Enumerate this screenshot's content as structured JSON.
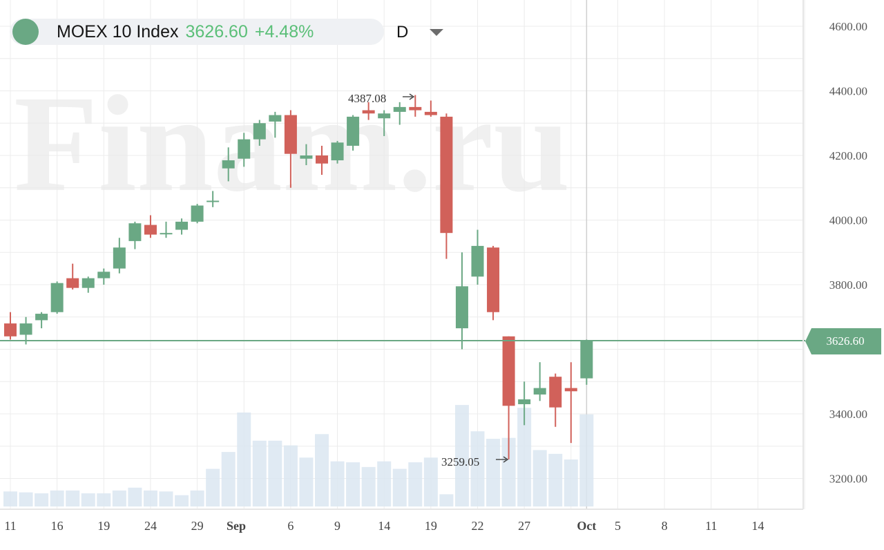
{
  "header": {
    "title": "MOEX 10 Index",
    "price": "3626.60",
    "change": "+4.48%",
    "interval": "D"
  },
  "watermark": "Finam.ru",
  "last_price_label": "3626.60",
  "annotations": {
    "high": {
      "label": "4387.08",
      "value": 4387.08
    },
    "low": {
      "label": "3259.05",
      "value": 3259.05
    }
  },
  "colors": {
    "up": "#6aa884",
    "down": "#d1615a",
    "volume": "#dbe6f1",
    "price_line": "#6aa884",
    "header_accent": "#5bbf78"
  },
  "chart_data": {
    "type": "candlestick",
    "ylim": [
      3120,
      4650
    ],
    "y_ticks": [
      "4600.00",
      "4400.00",
      "4200.00",
      "4000.00",
      "3800.00",
      "3400.00",
      "3200.00"
    ],
    "x_ticks": [
      {
        "label": "11",
        "i": 0
      },
      {
        "label": "16",
        "i": 3
      },
      {
        "label": "19",
        "i": 6
      },
      {
        "label": "24",
        "i": 9
      },
      {
        "label": "29",
        "i": 12
      },
      {
        "label": "Sep",
        "i": 14.5
      },
      {
        "label": "6",
        "i": 18
      },
      {
        "label": "9",
        "i": 21
      },
      {
        "label": "14",
        "i": 24
      },
      {
        "label": "19",
        "i": 27
      },
      {
        "label": "22",
        "i": 30
      },
      {
        "label": "27",
        "i": 33
      },
      {
        "label": "Oct",
        "i": 37
      },
      {
        "label": "5",
        "i": 39
      },
      {
        "label": "8",
        "i": 42
      },
      {
        "label": "11",
        "i": 45
      },
      {
        "label": "14",
        "i": 48
      }
    ],
    "grid": true,
    "candles": [
      {
        "o": 3680,
        "h": 3715,
        "l": 3630,
        "c": 3640,
        "v": 0.16
      },
      {
        "o": 3645,
        "h": 3700,
        "l": 3615,
        "c": 3680,
        "v": 0.15
      },
      {
        "o": 3690,
        "h": 3715,
        "l": 3665,
        "c": 3710,
        "v": 0.14
      },
      {
        "o": 3715,
        "h": 3810,
        "l": 3710,
        "c": 3805,
        "v": 0.17
      },
      {
        "o": 3820,
        "h": 3865,
        "l": 3785,
        "c": 3790,
        "v": 0.17
      },
      {
        "o": 3790,
        "h": 3825,
        "l": 3775,
        "c": 3820,
        "v": 0.14
      },
      {
        "o": 3820,
        "h": 3850,
        "l": 3800,
        "c": 3840,
        "v": 0.14
      },
      {
        "o": 3850,
        "h": 3945,
        "l": 3835,
        "c": 3915,
        "v": 0.17
      },
      {
        "o": 3935,
        "h": 3995,
        "l": 3910,
        "c": 3990,
        "v": 0.2
      },
      {
        "o": 3985,
        "h": 4015,
        "l": 3945,
        "c": 3955,
        "v": 0.17
      },
      {
        "o": 3960,
        "h": 3995,
        "l": 3945,
        "c": 3960,
        "v": 0.16
      },
      {
        "o": 3970,
        "h": 4005,
        "l": 3955,
        "c": 3995,
        "v": 0.12
      },
      {
        "o": 3995,
        "h": 4050,
        "l": 3990,
        "c": 4045,
        "v": 0.17
      },
      {
        "o": 4060,
        "h": 4090,
        "l": 4040,
        "c": 4060,
        "v": 0.4
      },
      {
        "o": 4160,
        "h": 4225,
        "l": 4120,
        "c": 4185,
        "v": 0.58
      },
      {
        "o": 4190,
        "h": 4270,
        "l": 4165,
        "c": 4250,
        "v": 1.0
      },
      {
        "o": 4250,
        "h": 4310,
        "l": 4230,
        "c": 4300,
        "v": 0.7
      },
      {
        "o": 4305,
        "h": 4335,
        "l": 4255,
        "c": 4325,
        "v": 0.7
      },
      {
        "o": 4325,
        "h": 4340,
        "l": 4100,
        "c": 4205,
        "v": 0.65
      },
      {
        "o": 4190,
        "h": 4235,
        "l": 4170,
        "c": 4200,
        "v": 0.52
      },
      {
        "o": 4200,
        "h": 4230,
        "l": 4140,
        "c": 4175,
        "v": 0.77
      },
      {
        "o": 4185,
        "h": 4245,
        "l": 4175,
        "c": 4240,
        "v": 0.48
      },
      {
        "o": 4230,
        "h": 4325,
        "l": 4215,
        "c": 4320,
        "v": 0.47
      },
      {
        "o": 4340,
        "h": 4365,
        "l": 4310,
        "c": 4330,
        "v": 0.42
      },
      {
        "o": 4315,
        "h": 4340,
        "l": 4260,
        "c": 4330,
        "v": 0.48
      },
      {
        "o": 4335,
        "h": 4365,
        "l": 4295,
        "c": 4350,
        "v": 0.4
      },
      {
        "o": 4350,
        "h": 4387.08,
        "l": 4320,
        "c": 4340,
        "v": 0.47
      },
      {
        "o": 4335,
        "h": 4370,
        "l": 4320,
        "c": 4325,
        "v": 0.52
      },
      {
        "o": 4320,
        "h": 4330,
        "l": 3880,
        "c": 3960,
        "v": 0.13
      },
      {
        "o": 3665,
        "h": 3900,
        "l": 3600,
        "c": 3795,
        "v": 1.08
      },
      {
        "o": 3825,
        "h": 3970,
        "l": 3800,
        "c": 3920,
        "v": 0.8
      },
      {
        "o": 3915,
        "h": 3920,
        "l": 3690,
        "c": 3715,
        "v": 0.72
      },
      {
        "o": 3640,
        "h": 3640,
        "l": 3259.05,
        "c": 3425,
        "v": 0.73
      },
      {
        "o": 3430,
        "h": 3500,
        "l": 3365,
        "c": 3445,
        "v": 1.05
      },
      {
        "o": 3460,
        "h": 3560,
        "l": 3440,
        "c": 3480,
        "v": 0.6
      },
      {
        "o": 3515,
        "h": 3525,
        "l": 3360,
        "c": 3420,
        "v": 0.56
      },
      {
        "o": 3480,
        "h": 3560,
        "l": 3310,
        "c": 3470,
        "v": 0.5
      },
      {
        "o": 3510,
        "h": 3630,
        "l": 3490,
        "c": 3626.6,
        "v": 0.98
      }
    ],
    "last": 3626.6
  }
}
